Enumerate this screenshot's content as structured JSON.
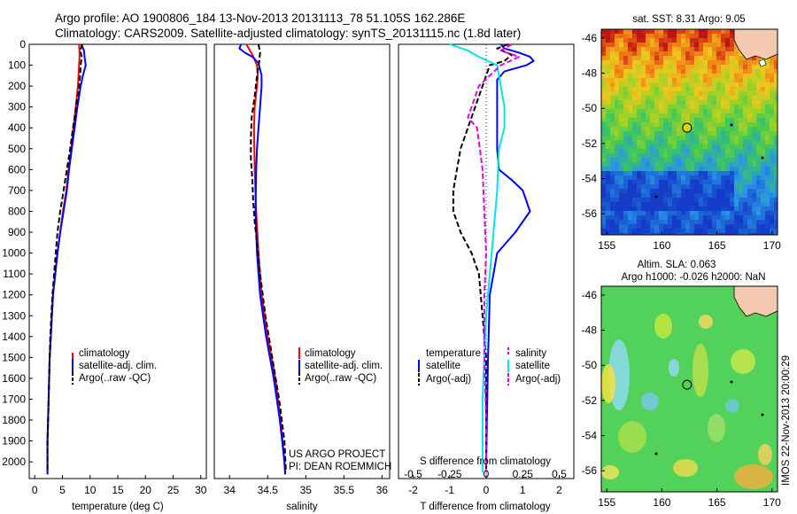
{
  "header": {
    "title_line1": "Argo profile: AO 1900806_184 13-Nov-2013 20131113_78 51.105S 162.286E",
    "title_line2": "Climatology: CARS2009. Satellite-adjusted climatology: synTS_20131115.nc (1.8d later)"
  },
  "colors": {
    "climatology": "#ff0000",
    "satellite": "#0000ff",
    "argo": "#000000",
    "sat_salinity": "#00e5e5",
    "argo_salinity": "#e000e0"
  },
  "chart_data": [
    {
      "type": "line",
      "xlabel": "temperature (deg C)",
      "ylabel": "",
      "xlim": [
        -1,
        31
      ],
      "ylim": [
        2080,
        0
      ],
      "xticks": [
        "0",
        "5",
        "10",
        "15",
        "20",
        "25",
        "30"
      ],
      "yticks": [
        "0",
        "100",
        "200",
        "300",
        "400",
        "500",
        "600",
        "700",
        "800",
        "900",
        "1000",
        "1100",
        "1200",
        "1300",
        "1400",
        "1500",
        "1600",
        "1700",
        "1800",
        "1900",
        "2000"
      ],
      "legend": [
        "climatology",
        "satellite-adj. clim.",
        "Argo(..raw -QC)"
      ],
      "series": [
        {
          "name": "climatology",
          "style": "solid",
          "depth": [
            0,
            50,
            100,
            200,
            300,
            400,
            500,
            600,
            700,
            800,
            900,
            1000,
            1100,
            1200,
            1300,
            1400,
            1500,
            1600,
            1700,
            1800,
            1900,
            2000,
            2060
          ],
          "values": [
            8.0,
            8.1,
            8.0,
            7.8,
            7.4,
            7.0,
            6.6,
            6.1,
            5.7,
            5.1,
            4.6,
            4.1,
            3.7,
            3.3,
            3.1,
            2.9,
            2.7,
            2.6,
            2.5,
            2.4,
            2.3,
            2.3,
            2.3
          ]
        },
        {
          "name": "satellite-adj. clim.",
          "style": "solid",
          "depth": [
            0,
            30,
            60,
            100,
            150,
            200,
            300,
            400,
            500,
            600,
            700,
            800,
            900,
            1000,
            1100,
            1200,
            1300,
            1400,
            1500,
            1600,
            1700,
            1800,
            1900,
            2000,
            2060
          ],
          "values": [
            8.4,
            8.9,
            9.0,
            9.2,
            8.7,
            8.3,
            7.7,
            7.2,
            6.7,
            6.2,
            5.8,
            5.2,
            4.6,
            4.1,
            3.7,
            3.3,
            3.1,
            2.9,
            2.7,
            2.6,
            2.5,
            2.4,
            2.3,
            2.3,
            2.3
          ]
        },
        {
          "name": "Argo(..raw -QC)",
          "style": "dashed",
          "depth": [
            0,
            30,
            60,
            100,
            150,
            200,
            300,
            400,
            500,
            600,
            700,
            800,
            900,
            1000,
            1100,
            1200,
            1300,
            1400,
            1500,
            1600,
            1700,
            1800,
            1900,
            2000,
            2050
          ],
          "values": [
            8.6,
            8.2,
            8.5,
            8.3,
            8.2,
            8.0,
            7.5,
            6.9,
            6.4,
            5.8,
            5.2,
            4.6,
            4.1,
            3.8,
            3.5,
            3.2,
            3.0,
            2.8,
            2.7,
            2.6,
            2.5,
            2.4,
            2.3,
            2.3,
            2.3
          ]
        }
      ]
    },
    {
      "type": "line",
      "xlabel": "salinity",
      "xlim": [
        33.8,
        36.1
      ],
      "ylim": [
        2080,
        0
      ],
      "xticks": [
        "34",
        "34.5",
        "35",
        "35.5",
        "36"
      ],
      "legend": [
        "climatology",
        "satellite-adj. clim.",
        "Argo(..raw -QC)"
      ],
      "series": [
        {
          "name": "climatology",
          "style": "solid",
          "depth": [
            0,
            50,
            100,
            150,
            200,
            300,
            400,
            600,
            800,
            1000,
            1200,
            1400,
            1600,
            1800,
            2000,
            2060
          ],
          "values": [
            34.22,
            34.3,
            34.36,
            34.37,
            34.36,
            34.33,
            34.32,
            34.33,
            34.35,
            34.38,
            34.42,
            34.5,
            34.6,
            34.67,
            34.72,
            34.73
          ]
        },
        {
          "name": "satellite-adj. clim.",
          "style": "solid",
          "depth": [
            0,
            20,
            40,
            60,
            90,
            150,
            200,
            300,
            400,
            500,
            600,
            800,
            1000,
            1200,
            1400,
            1600,
            1800,
            2000,
            2060
          ],
          "values": [
            34.15,
            34.13,
            34.2,
            34.3,
            34.38,
            34.42,
            34.42,
            34.4,
            34.38,
            34.36,
            34.35,
            34.34,
            34.36,
            34.4,
            34.48,
            34.58,
            34.66,
            34.72,
            34.73
          ]
        },
        {
          "name": "Argo(..raw -QC)",
          "style": "dashed",
          "depth": [
            0,
            40,
            80,
            150,
            250,
            350,
            450,
            550,
            650,
            750,
            850,
            950,
            1100,
            1300,
            1500,
            1700,
            1900,
            2050
          ],
          "values": [
            34.38,
            34.4,
            34.39,
            34.36,
            34.33,
            34.29,
            34.28,
            34.28,
            34.3,
            34.31,
            34.33,
            34.36,
            34.4,
            34.47,
            34.56,
            34.65,
            34.72,
            34.74
          ]
        }
      ],
      "annotation": [
        "US ARGO PROJECT",
        "PI: DEAN ROEMMICH"
      ]
    },
    {
      "type": "line",
      "xlabel": "T difference from climatology",
      "xlabel2": "S difference from climatology",
      "xlim": [
        -2.4,
        2.4
      ],
      "ylim": [
        2080,
        0
      ],
      "xticks": [
        "-2",
        "-1",
        "0",
        "1",
        "2"
      ],
      "xticks2": [
        "-0.5",
        "-0.25",
        "0",
        "0.25",
        "0.5"
      ],
      "legend_headers": [
        "temperature",
        "salinity"
      ],
      "legend": [
        "satellite",
        "Argo(-adj)",
        "satellite",
        "Argo(-adj)"
      ],
      "series": [
        {
          "name": "temperature satellite",
          "style": "solid",
          "depth": [
            0,
            20,
            40,
            60,
            80,
            100,
            130,
            170,
            220,
            300,
            400,
            500,
            600,
            650,
            700,
            800,
            900,
            1000,
            1200,
            1500,
            1800,
            2050
          ],
          "values": [
            0.4,
            0.5,
            0.9,
            1.2,
            1.3,
            1.1,
            0.5,
            0.3,
            0.3,
            0.3,
            0.3,
            0.3,
            0.35,
            0.7,
            1.0,
            1.2,
            0.8,
            0.3,
            0.1,
            0.05,
            0.02,
            0.0
          ]
        },
        {
          "name": "temperature Argo(-adj)",
          "style": "dashed",
          "depth": [
            0,
            20,
            50,
            80,
            100,
            150,
            200,
            300,
            400,
            500,
            600,
            700,
            800,
            900,
            1000,
            1100,
            1300,
            1500,
            1800,
            2050
          ],
          "values": [
            0.6,
            0.3,
            0.7,
            0.5,
            0.1,
            0.0,
            -0.1,
            -0.3,
            -0.5,
            -0.7,
            -0.8,
            -0.9,
            -0.9,
            -0.7,
            -0.4,
            -0.2,
            -0.1,
            0.0,
            0.0,
            0.0
          ]
        },
        {
          "name": "salinity satellite",
          "style": "solid",
          "depth": [
            0,
            30,
            60,
            100,
            200,
            300,
            400,
            500,
            700,
            900,
            1100,
            1300,
            1500,
            1700,
            2050
          ],
          "values": [
            -1.0,
            -0.5,
            -0.2,
            0.3,
            0.4,
            0.5,
            0.5,
            0.35,
            0.3,
            0.2,
            0.1,
            0.0,
            -0.05,
            -0.1,
            -0.1
          ]
        },
        {
          "name": "salinity Argo(-adj)",
          "style": "dashed",
          "depth": [
            0,
            30,
            60,
            100,
            150,
            200,
            300,
            350,
            400,
            600,
            800,
            1000,
            1200,
            1500,
            1800,
            2050
          ],
          "values": [
            0.7,
            0.4,
            0.9,
            0.4,
            0.1,
            -0.2,
            -0.4,
            -0.5,
            -0.25,
            -0.1,
            -0.05,
            0.0,
            -0.05,
            -0.05,
            0.0,
            0.0
          ]
        }
      ]
    },
    {
      "type": "heatmap",
      "title": "sat. SST: 8.31  Argo: 9.05",
      "xlim": [
        154.5,
        170.5
      ],
      "ylim": [
        -57.2,
        -45.5
      ],
      "xticks": [
        "155",
        "160",
        "165",
        "170"
      ],
      "yticks": [
        "-46",
        "-48",
        "-50",
        "-52",
        "-54",
        "-56"
      ],
      "marker": {
        "lon": 162.286,
        "lat": -51.105
      }
    },
    {
      "type": "heatmap",
      "title": "Altim. SLA: 0.063",
      "subtitle": "Argo h1000: -0.026 h2000: NaN",
      "side_label": "IMOS 22-Nov-2013 20:00:29",
      "xlim": [
        154.5,
        170.5
      ],
      "ylim": [
        -57.2,
        -45.5
      ],
      "xticks": [
        "155",
        "160",
        "165",
        "170"
      ],
      "yticks": [
        "-46",
        "-48",
        "-50",
        "-52",
        "-54",
        "-56"
      ],
      "marker": {
        "lon": 162.286,
        "lat": -51.105
      }
    }
  ]
}
